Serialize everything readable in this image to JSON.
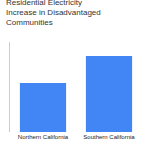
{
  "chart_data": {
    "type": "bar",
    "title": "Residential Electricity Increase in Disadvantaged Communities",
    "categories": [
      "Northern California",
      "Southern California"
    ],
    "values": [
      60,
      93
    ],
    "color": "#4285f4",
    "ylim": [
      0,
      110
    ],
    "grid": false,
    "tick_labels": "x"
  }
}
